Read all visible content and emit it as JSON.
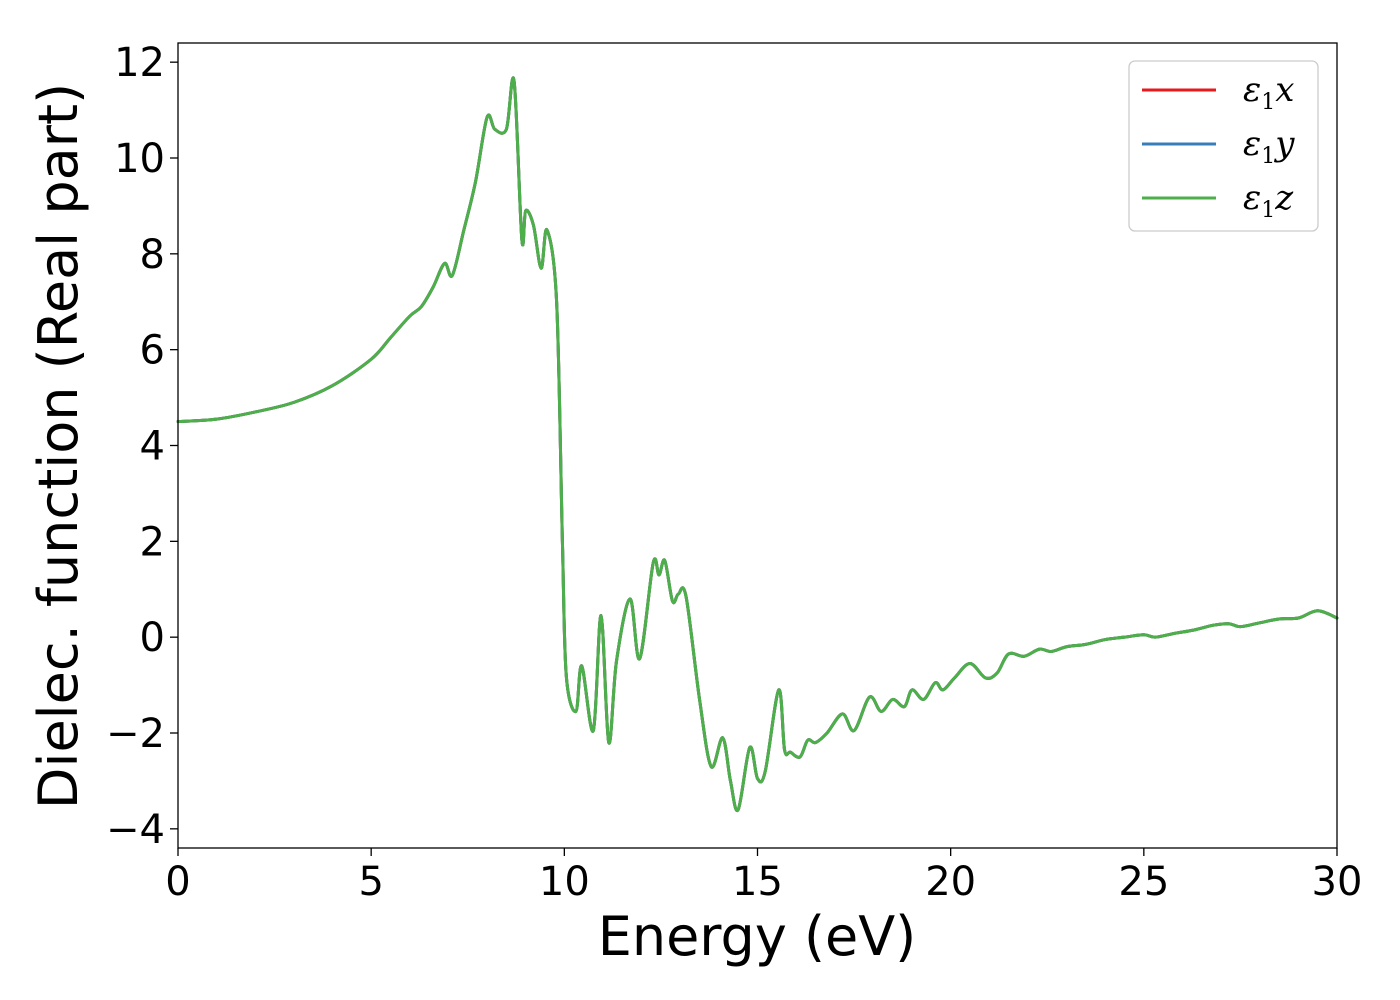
{
  "chart_data": {
    "type": "line",
    "title": "",
    "xlabel": "Energy (eV)",
    "ylabel": "Dielec. function (Real part)",
    "xlim": [
      0,
      30
    ],
    "ylim": [
      -4.4,
      12.4
    ],
    "xticks": [
      0,
      5,
      10,
      15,
      20,
      25,
      30
    ],
    "xtick_labels": [
      "0",
      "5",
      "10",
      "15",
      "20",
      "25",
      "30"
    ],
    "yticks": [
      -4,
      -2,
      0,
      2,
      4,
      6,
      8,
      10,
      12
    ],
    "ytick_labels": [
      "−4",
      "−2",
      "0",
      "2",
      "4",
      "6",
      "8",
      "10",
      "12"
    ],
    "grid": false,
    "legend_position": "top-right",
    "series": [
      {
        "name": "ε1x",
        "legend_main": "ε",
        "legend_sub": "1",
        "legend_var": "x",
        "color": "#e41a1c",
        "x": [
          0,
          1,
          2,
          3,
          4,
          5,
          5.5,
          6,
          6.3,
          6.6,
          6.9,
          7.1,
          7.4,
          7.7,
          8.0,
          8.2,
          8.5,
          8.7,
          8.9,
          9.0,
          9.2,
          9.4,
          9.55,
          9.8,
          9.95,
          10.05,
          10.3,
          10.45,
          10.75,
          10.95,
          11.15,
          11.35,
          11.7,
          11.95,
          12.3,
          12.45,
          12.6,
          12.8,
          12.95,
          13.15,
          13.5,
          13.8,
          14.1,
          14.3,
          14.5,
          14.8,
          15.0,
          15.2,
          15.55,
          15.7,
          15.85,
          16.1,
          16.3,
          16.5,
          16.8,
          17.2,
          17.5,
          17.9,
          18.2,
          18.5,
          18.8,
          19.0,
          19.3,
          19.6,
          19.8,
          20.1,
          20.5,
          20.9,
          21.2,
          21.5,
          21.9,
          22.3,
          22.6,
          23.0,
          23.5,
          24.0,
          24.5,
          25.0,
          25.3,
          25.8,
          26.3,
          26.8,
          27.2,
          27.5,
          28.0,
          28.5,
          29.0,
          29.5,
          30.0
        ],
        "y": [
          4.5,
          4.55,
          4.7,
          4.9,
          5.25,
          5.8,
          6.25,
          6.7,
          6.9,
          7.3,
          7.8,
          7.55,
          8.5,
          9.5,
          10.85,
          10.6,
          10.6,
          11.6,
          8.3,
          8.9,
          8.6,
          7.7,
          8.5,
          7.0,
          2.0,
          -0.8,
          -1.55,
          -0.6,
          -1.95,
          0.45,
          -2.2,
          -0.5,
          0.8,
          -0.45,
          1.55,
          1.3,
          1.6,
          0.75,
          0.9,
          0.85,
          -1.3,
          -2.7,
          -2.1,
          -3.0,
          -3.6,
          -2.3,
          -2.95,
          -2.8,
          -1.1,
          -2.35,
          -2.4,
          -2.5,
          -2.15,
          -2.2,
          -2.0,
          -1.6,
          -1.95,
          -1.25,
          -1.55,
          -1.3,
          -1.45,
          -1.1,
          -1.3,
          -0.95,
          -1.1,
          -0.85,
          -0.55,
          -0.85,
          -0.75,
          -0.35,
          -0.4,
          -0.25,
          -0.3,
          -0.2,
          -0.15,
          -0.05,
          0.0,
          0.05,
          0.0,
          0.08,
          0.15,
          0.25,
          0.28,
          0.22,
          0.3,
          0.38,
          0.4,
          0.55,
          0.4
        ]
      },
      {
        "name": "ε1y",
        "legend_main": "ε",
        "legend_sub": "1",
        "legend_var": "y",
        "color": "#377eb8",
        "x": [
          0,
          1,
          2,
          3,
          4,
          5,
          5.5,
          6,
          6.3,
          6.6,
          6.9,
          7.1,
          7.4,
          7.7,
          8.0,
          8.2,
          8.5,
          8.7,
          8.9,
          9.0,
          9.2,
          9.4,
          9.55,
          9.8,
          9.95,
          10.05,
          10.3,
          10.45,
          10.75,
          10.95,
          11.15,
          11.35,
          11.7,
          11.95,
          12.3,
          12.45,
          12.6,
          12.8,
          12.95,
          13.15,
          13.5,
          13.8,
          14.1,
          14.3,
          14.5,
          14.8,
          15.0,
          15.2,
          15.55,
          15.7,
          15.85,
          16.1,
          16.3,
          16.5,
          16.8,
          17.2,
          17.5,
          17.9,
          18.2,
          18.5,
          18.8,
          19.0,
          19.3,
          19.6,
          19.8,
          20.1,
          20.5,
          20.9,
          21.2,
          21.5,
          21.9,
          22.3,
          22.6,
          23.0,
          23.5,
          24.0,
          24.5,
          25.0,
          25.3,
          25.8,
          26.3,
          26.8,
          27.2,
          27.5,
          28.0,
          28.5,
          29.0,
          29.5,
          30.0
        ],
        "y": [
          4.5,
          4.55,
          4.7,
          4.9,
          5.25,
          5.8,
          6.25,
          6.7,
          6.9,
          7.3,
          7.8,
          7.55,
          8.5,
          9.5,
          10.85,
          10.6,
          10.6,
          11.6,
          8.3,
          8.9,
          8.6,
          7.7,
          8.5,
          7.0,
          2.0,
          -0.8,
          -1.55,
          -0.6,
          -1.95,
          0.45,
          -2.2,
          -0.5,
          0.8,
          -0.45,
          1.55,
          1.3,
          1.6,
          0.75,
          0.9,
          0.85,
          -1.3,
          -2.7,
          -2.1,
          -3.0,
          -3.6,
          -2.3,
          -2.95,
          -2.8,
          -1.1,
          -2.35,
          -2.4,
          -2.5,
          -2.15,
          -2.2,
          -2.0,
          -1.6,
          -1.95,
          -1.25,
          -1.55,
          -1.3,
          -1.45,
          -1.1,
          -1.3,
          -0.95,
          -1.1,
          -0.85,
          -0.55,
          -0.85,
          -0.75,
          -0.35,
          -0.4,
          -0.25,
          -0.3,
          -0.2,
          -0.15,
          -0.05,
          0.0,
          0.05,
          0.0,
          0.08,
          0.15,
          0.25,
          0.28,
          0.22,
          0.3,
          0.38,
          0.4,
          0.55,
          0.4
        ]
      },
      {
        "name": "ε1z",
        "legend_main": "ε",
        "legend_sub": "1",
        "legend_var": "z",
        "color": "#4daf4a",
        "x": [
          0,
          1,
          2,
          3,
          4,
          5,
          5.5,
          6,
          6.3,
          6.6,
          6.9,
          7.1,
          7.4,
          7.7,
          8.0,
          8.2,
          8.5,
          8.7,
          8.9,
          9.0,
          9.2,
          9.4,
          9.55,
          9.8,
          9.95,
          10.05,
          10.3,
          10.45,
          10.75,
          10.95,
          11.15,
          11.35,
          11.7,
          11.95,
          12.3,
          12.45,
          12.6,
          12.8,
          12.95,
          13.15,
          13.5,
          13.8,
          14.1,
          14.3,
          14.5,
          14.8,
          15.0,
          15.2,
          15.55,
          15.7,
          15.85,
          16.1,
          16.3,
          16.5,
          16.8,
          17.2,
          17.5,
          17.9,
          18.2,
          18.5,
          18.8,
          19.0,
          19.3,
          19.6,
          19.8,
          20.1,
          20.5,
          20.9,
          21.2,
          21.5,
          21.9,
          22.3,
          22.6,
          23.0,
          23.5,
          24.0,
          24.5,
          25.0,
          25.3,
          25.8,
          26.3,
          26.8,
          27.2,
          27.5,
          28.0,
          28.5,
          29.0,
          29.5,
          30.0
        ],
        "y": [
          4.5,
          4.55,
          4.7,
          4.9,
          5.25,
          5.8,
          6.25,
          6.7,
          6.9,
          7.3,
          7.8,
          7.55,
          8.5,
          9.5,
          10.85,
          10.6,
          10.6,
          11.6,
          8.3,
          8.9,
          8.6,
          7.7,
          8.5,
          7.0,
          2.0,
          -0.8,
          -1.55,
          -0.6,
          -1.95,
          0.45,
          -2.2,
          -0.5,
          0.8,
          -0.45,
          1.55,
          1.3,
          1.6,
          0.75,
          0.9,
          0.85,
          -1.3,
          -2.7,
          -2.1,
          -3.0,
          -3.6,
          -2.3,
          -2.95,
          -2.8,
          -1.1,
          -2.35,
          -2.4,
          -2.5,
          -2.15,
          -2.2,
          -2.0,
          -1.6,
          -1.95,
          -1.25,
          -1.55,
          -1.3,
          -1.45,
          -1.1,
          -1.3,
          -0.95,
          -1.1,
          -0.85,
          -0.55,
          -0.85,
          -0.75,
          -0.35,
          -0.4,
          -0.25,
          -0.3,
          -0.2,
          -0.15,
          -0.05,
          0.0,
          0.05,
          0.0,
          0.08,
          0.15,
          0.25,
          0.28,
          0.22,
          0.3,
          0.38,
          0.4,
          0.55,
          0.4
        ]
      }
    ]
  }
}
